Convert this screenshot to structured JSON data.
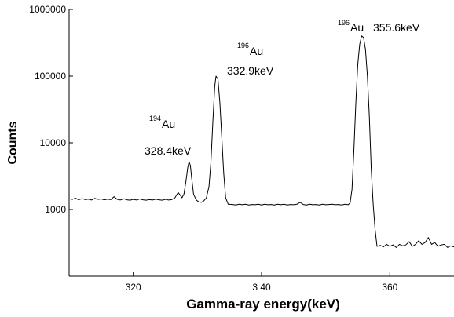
{
  "chart_data": {
    "type": "line",
    "title": "",
    "xlabel": "Gamma-ray energy(keV)",
    "ylabel": "Counts",
    "xlim": [
      310,
      370
    ],
    "ylim": [
      100,
      1000000
    ],
    "yscale": "log",
    "grid": false,
    "x_ticks": [
      320,
      340,
      360
    ],
    "x_tick_labels": [
      "320",
      "3 40",
      "360"
    ],
    "y_ticks": [
      1000,
      10000,
      100000,
      1000000
    ],
    "y_tick_labels": [
      "1000",
      "10000",
      "100000",
      "1000000"
    ],
    "series": [
      {
        "points": [
          [
            310,
            1450
          ],
          [
            310.5,
            1420
          ],
          [
            311,
            1480
          ],
          [
            311.5,
            1400
          ],
          [
            312,
            1460
          ],
          [
            312.5,
            1410
          ],
          [
            313,
            1430
          ],
          [
            313.5,
            1390
          ],
          [
            314,
            1470
          ],
          [
            314.5,
            1420
          ],
          [
            315,
            1440
          ],
          [
            315.5,
            1400
          ],
          [
            316,
            1430
          ],
          [
            316.5,
            1410
          ],
          [
            317,
            1560
          ],
          [
            317.5,
            1420
          ],
          [
            318,
            1390
          ],
          [
            318.5,
            1450
          ],
          [
            319,
            1400
          ],
          [
            319.5,
            1380
          ],
          [
            320,
            1420
          ],
          [
            320.5,
            1390
          ],
          [
            321,
            1440
          ],
          [
            321.5,
            1400
          ],
          [
            322,
            1380
          ],
          [
            322.5,
            1410
          ],
          [
            323,
            1390
          ],
          [
            323.5,
            1430
          ],
          [
            324,
            1400
          ],
          [
            324.5,
            1380
          ],
          [
            325,
            1420
          ],
          [
            325.5,
            1390
          ],
          [
            326,
            1410
          ],
          [
            326.5,
            1500
          ],
          [
            327,
            1800
          ],
          [
            327.3,
            1650
          ],
          [
            327.6,
            1500
          ],
          [
            327.9,
            1700
          ],
          [
            328.2,
            2600
          ],
          [
            328.5,
            4300
          ],
          [
            328.7,
            5200
          ],
          [
            328.9,
            4600
          ],
          [
            329.1,
            3000
          ],
          [
            329.4,
            1700
          ],
          [
            329.8,
            1400
          ],
          [
            330.2,
            1300
          ],
          [
            330.6,
            1280
          ],
          [
            331,
            1350
          ],
          [
            331.4,
            1500
          ],
          [
            331.8,
            2200
          ],
          [
            332.1,
            5000
          ],
          [
            332.4,
            20000
          ],
          [
            332.7,
            70000
          ],
          [
            332.9,
            100000
          ],
          [
            333.2,
            90000
          ],
          [
            333.5,
            40000
          ],
          [
            333.8,
            12000
          ],
          [
            334.1,
            3500
          ],
          [
            334.4,
            1500
          ],
          [
            334.8,
            1200
          ],
          [
            335.5,
            1190
          ],
          [
            336,
            1170
          ],
          [
            336.5,
            1200
          ],
          [
            337,
            1180
          ],
          [
            337.5,
            1200
          ],
          [
            338,
            1170
          ],
          [
            338.5,
            1190
          ],
          [
            339,
            1180
          ],
          [
            339.5,
            1200
          ],
          [
            340,
            1170
          ],
          [
            340.5,
            1200
          ],
          [
            341,
            1180
          ],
          [
            341.5,
            1190
          ],
          [
            342,
            1170
          ],
          [
            342.5,
            1200
          ],
          [
            343,
            1180
          ],
          [
            343.5,
            1200
          ],
          [
            344,
            1170
          ],
          [
            344.5,
            1190
          ],
          [
            345,
            1180
          ],
          [
            345.5,
            1200
          ],
          [
            346,
            1280
          ],
          [
            346.5,
            1190
          ],
          [
            347,
            1170
          ],
          [
            347.5,
            1200
          ],
          [
            348,
            1180
          ],
          [
            348.5,
            1190
          ],
          [
            349,
            1170
          ],
          [
            349.5,
            1200
          ],
          [
            350,
            1180
          ],
          [
            350.5,
            1190
          ],
          [
            351,
            1200
          ],
          [
            351.5,
            1180
          ],
          [
            352,
            1190
          ],
          [
            352.5,
            1170
          ],
          [
            353,
            1200
          ],
          [
            353.5,
            1180
          ],
          [
            353.8,
            1250
          ],
          [
            354.1,
            2000
          ],
          [
            354.4,
            8000
          ],
          [
            354.7,
            40000
          ],
          [
            355,
            150000
          ],
          [
            355.3,
            300000
          ],
          [
            355.6,
            400000
          ],
          [
            355.9,
            380000
          ],
          [
            356.2,
            250000
          ],
          [
            356.5,
            100000
          ],
          [
            356.8,
            25000
          ],
          [
            357.1,
            4000
          ],
          [
            357.4,
            1200
          ],
          [
            357.7,
            500
          ],
          [
            358,
            280
          ],
          [
            358.5,
            290
          ],
          [
            359,
            275
          ],
          [
            359.5,
            300
          ],
          [
            360,
            280
          ],
          [
            360.5,
            295
          ],
          [
            361,
            270
          ],
          [
            361.5,
            300
          ],
          [
            362,
            285
          ],
          [
            362.5,
            295
          ],
          [
            363,
            330
          ],
          [
            363.5,
            280
          ],
          [
            364,
            300
          ],
          [
            364.5,
            340
          ],
          [
            365,
            300
          ],
          [
            365.5,
            320
          ],
          [
            366,
            380
          ],
          [
            366.5,
            300
          ],
          [
            367,
            320
          ],
          [
            367.5,
            280
          ],
          [
            368,
            295
          ],
          [
            368.5,
            300
          ],
          [
            369,
            270
          ],
          [
            369.5,
            285
          ],
          [
            370,
            275
          ]
        ]
      }
    ],
    "annotations": [
      {
        "superscript": "194",
        "element": "Au",
        "energy": "328.4keV",
        "peak_x": 328.7
      },
      {
        "superscript": "196",
        "element": "Au",
        "energy": "332.9keV",
        "peak_x": 332.9
      },
      {
        "superscript": "196",
        "element": "Au",
        "energy": "355.6keV",
        "peak_x": 355.6
      }
    ]
  }
}
